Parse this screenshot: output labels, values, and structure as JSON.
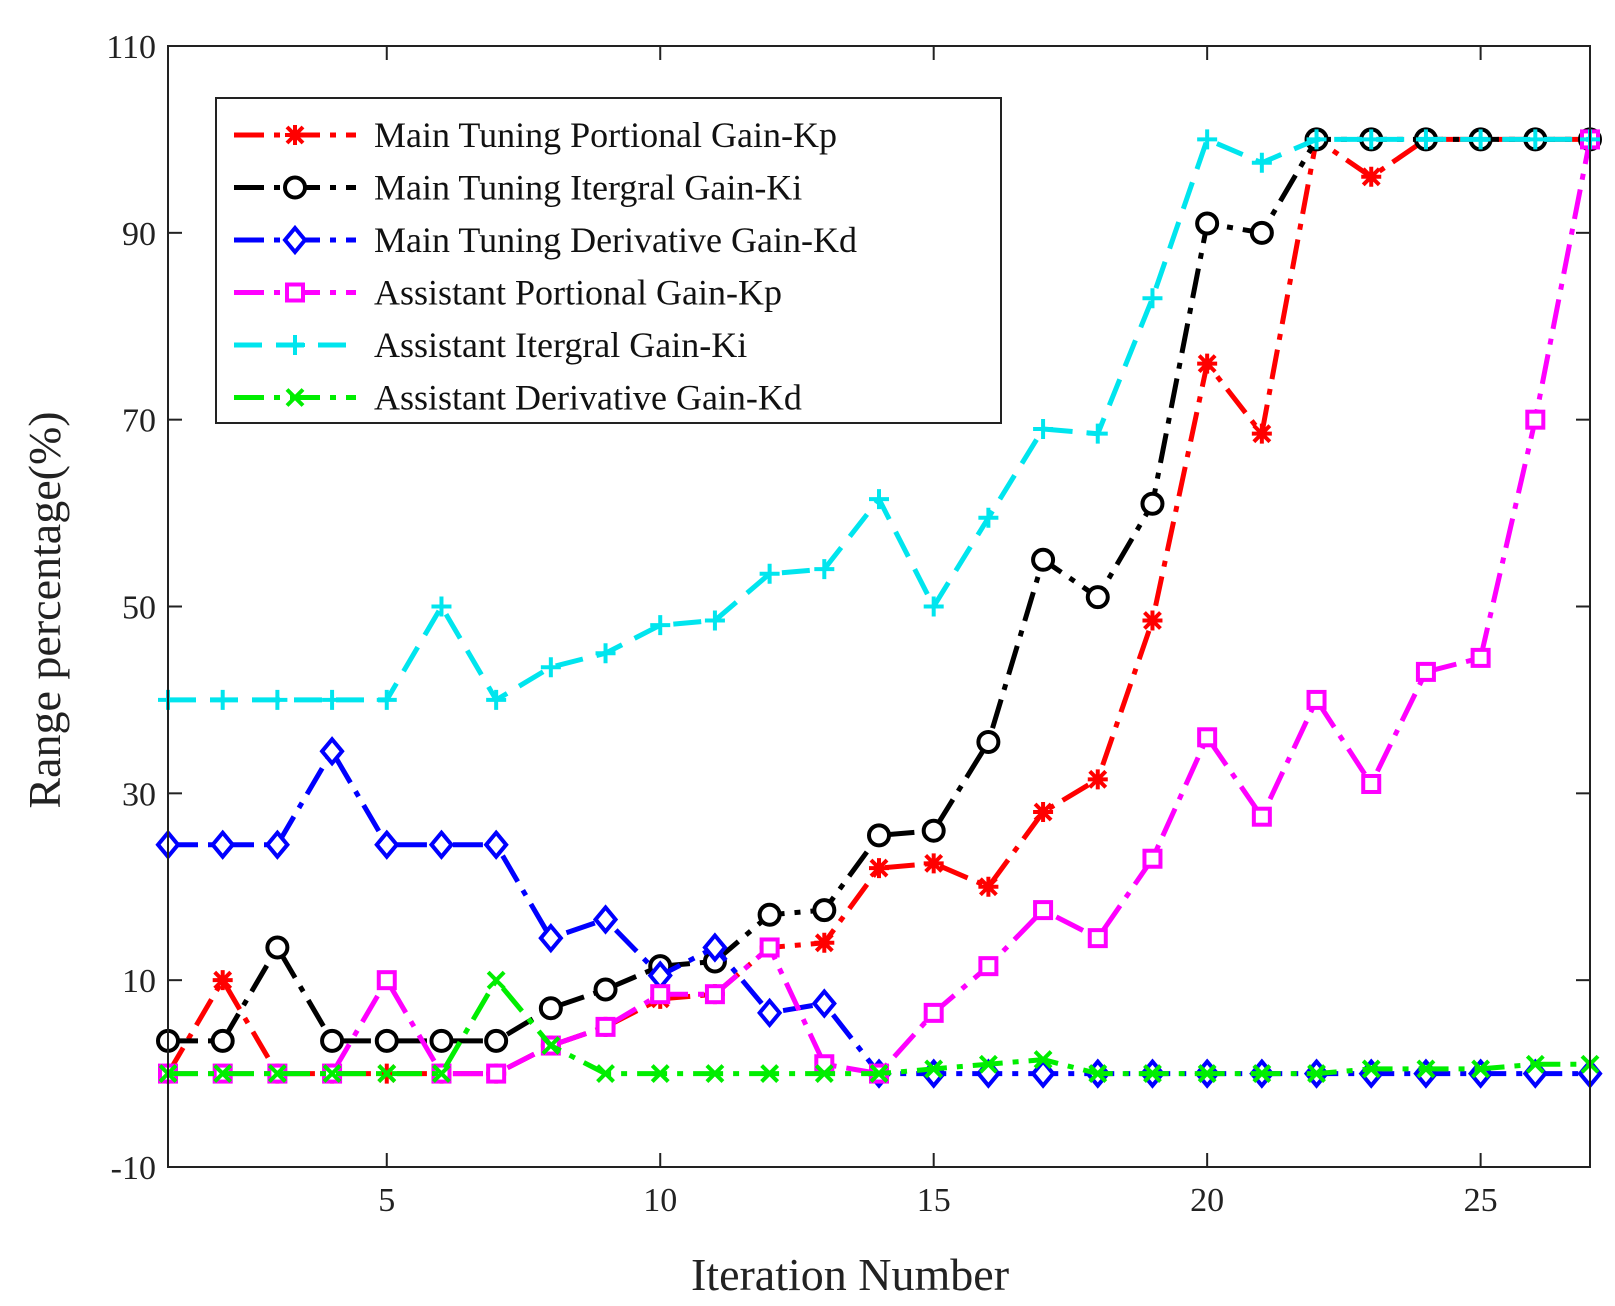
{
  "chart_data": {
    "type": "line",
    "title": "",
    "xlabel": "Iteration Number",
    "ylabel": "Range percentage(%)",
    "xlim": [
      1,
      27
    ],
    "ylim": [
      -10,
      110
    ],
    "x_ticks": [
      5,
      10,
      15,
      20,
      25
    ],
    "y_ticks": [
      -10,
      10,
      30,
      50,
      70,
      90,
      110
    ],
    "grid": false,
    "legend_position": "top-left",
    "x": [
      1,
      2,
      3,
      4,
      5,
      6,
      7,
      8,
      9,
      10,
      11,
      12,
      13,
      14,
      15,
      16,
      17,
      18,
      19,
      20,
      21,
      22,
      23,
      24,
      25,
      26,
      27
    ],
    "series": [
      {
        "name": "Main Tuning Portional Gain-Kp",
        "color": "#ff0000",
        "marker": "asterisk",
        "dash": "dashdot",
        "values": [
          0,
          10,
          0,
          0,
          0,
          0,
          0,
          3,
          5,
          8,
          8.5,
          13.5,
          14,
          22,
          22.5,
          20,
          28,
          31.5,
          48.5,
          76,
          68.5,
          100,
          96,
          100,
          100,
          100,
          100
        ]
      },
      {
        "name": "Main Tuning Itergral Gain-Ki",
        "color": "#000000",
        "marker": "circle",
        "dash": "dashdot",
        "values": [
          3.5,
          3.5,
          13.5,
          3.5,
          3.5,
          3.5,
          3.5,
          7,
          9,
          11.5,
          12,
          17,
          17.5,
          25.5,
          26,
          35.5,
          55,
          51,
          61,
          91,
          90,
          100,
          100,
          100,
          100,
          100,
          100
        ]
      },
      {
        "name": "Main Tuning Derivative Gain-Kd",
        "color": "#0000ff",
        "marker": "diamond",
        "dash": "dashdot",
        "values": [
          24.5,
          24.5,
          24.5,
          34.5,
          24.5,
          24.5,
          24.5,
          14.5,
          16.5,
          10.5,
          13.5,
          6.5,
          7.5,
          0,
          0,
          0,
          0,
          0,
          0,
          0,
          0,
          0,
          0,
          0,
          0,
          0,
          0
        ]
      },
      {
        "name": "Assistant Portional Gain-Kp",
        "color": "#ff00ff",
        "marker": "square",
        "dash": "dashdot",
        "values": [
          0,
          0,
          0,
          0,
          10,
          0,
          0,
          3,
          5,
          8.5,
          8.5,
          13.5,
          1,
          0,
          6.5,
          11.5,
          17.5,
          14.5,
          23,
          36,
          27.5,
          40,
          31,
          43,
          44.5,
          70,
          100
        ]
      },
      {
        "name": "Assistant Itergral Gain-Ki",
        "color": "#00e5ee",
        "marker": "plus",
        "dash": "dashed",
        "values": [
          40,
          40,
          40,
          40,
          40,
          50,
          40,
          43.5,
          45,
          48,
          48.5,
          53.5,
          54,
          61.5,
          50,
          59.5,
          69,
          68.5,
          83,
          100,
          97.5,
          100,
          100,
          100,
          100,
          100,
          100
        ]
      },
      {
        "name": "Assistant Derivative Gain-Kd",
        "color": "#00ee00",
        "marker": "x",
        "dash": "dashdot",
        "values": [
          0,
          0,
          0,
          0,
          0,
          0,
          10,
          3,
          0,
          0,
          0,
          0,
          0,
          0,
          0.5,
          1,
          1.5,
          0,
          0,
          0,
          0,
          0,
          0.5,
          0.5,
          0.5,
          1,
          1
        ]
      }
    ]
  }
}
